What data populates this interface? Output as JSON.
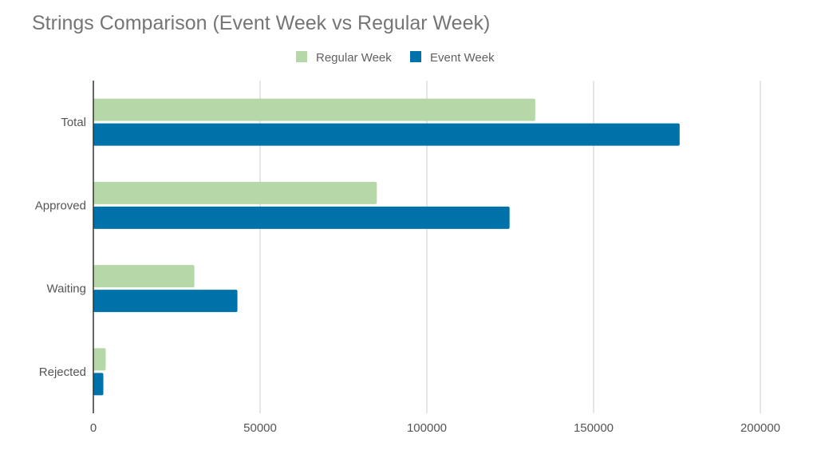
{
  "chart_data": {
    "type": "bar",
    "orientation": "horizontal",
    "title": "Strings Comparison (Event Week vs Regular Week)",
    "xlabel": "",
    "ylabel": "",
    "categories": [
      "Total",
      "Approved",
      "Waiting",
      "Rejected"
    ],
    "series": [
      {
        "name": "Regular Week",
        "color": "#b6d7a8",
        "values": [
          132500,
          85000,
          30300,
          3700
        ]
      },
      {
        "name": "Event Week",
        "color": "#0072aa",
        "values": [
          175800,
          124800,
          43200,
          3000
        ]
      }
    ],
    "xlim": [
      0,
      200000
    ],
    "xticks": [
      0,
      50000,
      100000,
      150000,
      200000
    ],
    "xtick_labels": [
      "0",
      "50000",
      "100000",
      "150000",
      "200000"
    ],
    "grid": true,
    "legend_position": "top-center"
  }
}
